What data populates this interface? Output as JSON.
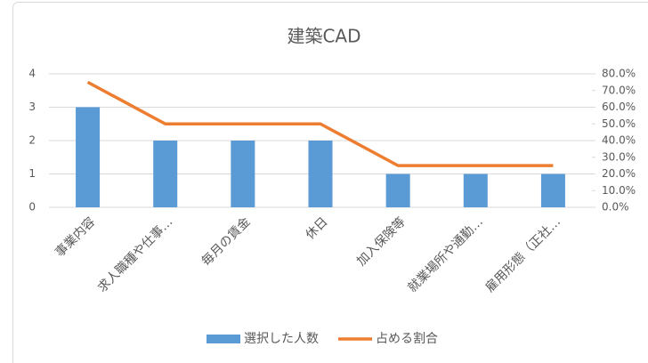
{
  "chart_data": {
    "type": "bar-line",
    "title": "建築CAD",
    "categories": [
      "事業内容",
      "求人職種や仕事…",
      "毎月の賃金",
      "休日",
      "加入保険等",
      "就業場所や通勤…",
      "雇用形態（正社…"
    ],
    "series": [
      {
        "name": "選択した人数",
        "color": "#5b9bd5",
        "type": "bar",
        "values": [
          3,
          2,
          2,
          2,
          1,
          1,
          1
        ]
      },
      {
        "name": "占める割合",
        "color": "#ed7d31",
        "type": "line",
        "axis": "y2",
        "values": [
          75,
          50,
          50,
          50,
          25,
          25,
          25
        ]
      }
    ],
    "ylim": [
      0,
      4
    ],
    "yticks": [
      0,
      1,
      2,
      3,
      4
    ],
    "y2lim": [
      0,
      80
    ],
    "y2ticks": [
      {
        "value": 0,
        "label": "0.0%"
      },
      {
        "value": 10,
        "label": "10.0%"
      },
      {
        "value": 20,
        "label": "20.0%"
      },
      {
        "value": 30,
        "label": "30.0%"
      },
      {
        "value": 40,
        "label": "40.0%"
      },
      {
        "value": 50,
        "label": "50.0%"
      },
      {
        "value": 60,
        "label": "60.0%"
      },
      {
        "value": 70,
        "label": "70.0%"
      },
      {
        "value": 80,
        "label": "80.0%"
      }
    ],
    "grid": true,
    "legend": "bottom"
  }
}
